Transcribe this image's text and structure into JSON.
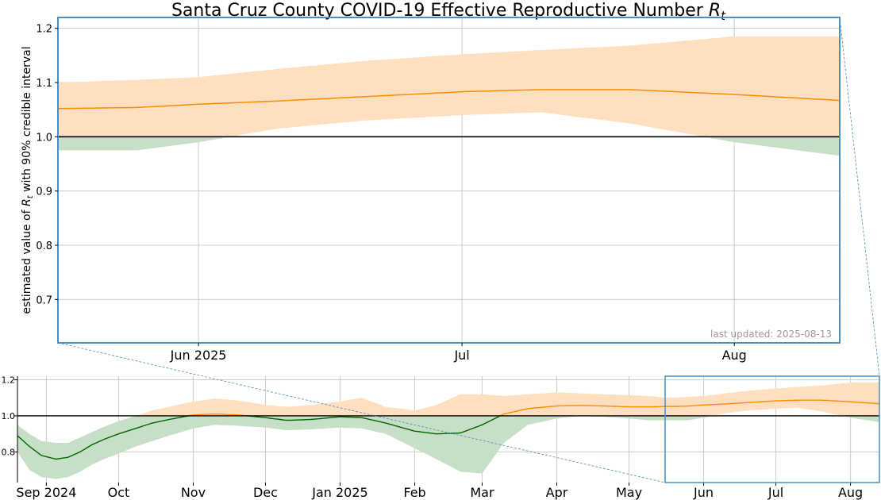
{
  "chart_data": {
    "type": "area",
    "title": "Santa Cruz County COVID-19 Effective Reproductive Number",
    "title_symbol": "R",
    "title_symbol_sub": "t",
    "ylabel_prefix": "estimated value of",
    "ylabel_symbol": "R",
    "ylabel_symbol_sub": "t",
    "ylabel_suffix": "with 90% credible interval",
    "annotation": "last updated: 2025-08-13",
    "reference_line": 1.0,
    "colors": {
      "above_fill": "#ffdfbf",
      "below_fill": "#c8dfc7",
      "above_line": "#ff8c00",
      "below_line": "#006400",
      "reference": "#000000",
      "zoom_box": "#4a8ec2",
      "grid": "#cccccc"
    },
    "main_panel": {
      "x_range": [
        "2025-05-16",
        "2025-08-13"
      ],
      "ylim": [
        0.62,
        1.22
      ],
      "y_ticks": [
        "0.7",
        "0.8",
        "0.9",
        "1.0",
        "1.1",
        "1.2"
      ],
      "x_ticks": [
        {
          "date": "2025-06-01",
          "label": "Jun 2025"
        },
        {
          "date": "2025-07-01",
          "label": "Jul"
        },
        {
          "date": "2025-08-01",
          "label": "Aug"
        }
      ],
      "grid": true
    },
    "overview_panel": {
      "x_range": [
        "2024-08-20",
        "2025-08-13"
      ],
      "ylim": [
        0.63,
        1.22
      ],
      "y_ticks": [
        "0.8",
        "1.0",
        "1.2"
      ],
      "x_ticks": [
        {
          "date": "2024-09-01",
          "label": "Sep 2024"
        },
        {
          "date": "2024-10-01",
          "label": "Oct"
        },
        {
          "date": "2024-11-01",
          "label": "Nov"
        },
        {
          "date": "2024-12-01",
          "label": "Dec"
        },
        {
          "date": "2025-01-01",
          "label": "Jan 2025"
        },
        {
          "date": "2025-02-01",
          "label": "Feb"
        },
        {
          "date": "2025-03-01",
          "label": "Mar"
        },
        {
          "date": "2025-04-01",
          "label": "Apr"
        },
        {
          "date": "2025-05-01",
          "label": "May"
        },
        {
          "date": "2025-06-01",
          "label": "Jun"
        },
        {
          "date": "2025-07-01",
          "label": "Jul"
        },
        {
          "date": "2025-08-01",
          "label": "Aug"
        }
      ],
      "zoom_window": [
        "2025-05-16",
        "2025-08-13"
      ],
      "grid": true
    },
    "series": [
      {
        "x": [
          "2024-08-20",
          "2024-08-25",
          "2024-08-30",
          "2024-09-05",
          "2024-09-10",
          "2024-09-15",
          "2024-09-20",
          "2024-09-25",
          "2024-10-01",
          "2024-10-08",
          "2024-10-15",
          "2024-10-22",
          "2024-11-01",
          "2024-11-10",
          "2024-11-20",
          "2024-12-01",
          "2024-12-10",
          "2024-12-20",
          "2025-01-01",
          "2025-01-10",
          "2025-01-20",
          "2025-02-01",
          "2025-02-10",
          "2025-02-20",
          "2025-03-01",
          "2025-03-10",
          "2025-03-20",
          "2025-04-01",
          "2025-04-10",
          "2025-04-20",
          "2025-05-01",
          "2025-05-10",
          "2025-05-16",
          "2025-05-25",
          "2025-06-01",
          "2025-06-10",
          "2025-06-20",
          "2025-07-01",
          "2025-07-10",
          "2025-07-20",
          "2025-08-01",
          "2025-08-13"
        ],
        "mean": [
          0.89,
          0.83,
          0.78,
          0.76,
          0.77,
          0.8,
          0.84,
          0.87,
          0.9,
          0.93,
          0.96,
          0.98,
          1.005,
          1.01,
          1.005,
          0.99,
          0.975,
          0.98,
          0.995,
          0.99,
          0.96,
          0.915,
          0.9,
          0.905,
          0.95,
          1.01,
          1.04,
          1.055,
          1.058,
          1.055,
          1.05,
          1.05,
          1.052,
          1.054,
          1.06,
          1.066,
          1.074,
          1.083,
          1.087,
          1.087,
          1.078,
          1.067
        ],
        "lower": [
          0.8,
          0.7,
          0.66,
          0.65,
          0.66,
          0.69,
          0.73,
          0.76,
          0.79,
          0.83,
          0.86,
          0.89,
          0.93,
          0.95,
          0.945,
          0.935,
          0.92,
          0.925,
          0.935,
          0.93,
          0.9,
          0.82,
          0.76,
          0.69,
          0.68,
          0.85,
          0.95,
          0.985,
          1.0,
          0.995,
          0.985,
          0.975,
          0.975,
          0.975,
          0.99,
          1.015,
          1.03,
          1.04,
          1.045,
          1.025,
          0.99,
          0.965
        ],
        "upper": [
          0.95,
          0.9,
          0.86,
          0.85,
          0.85,
          0.88,
          0.91,
          0.94,
          0.97,
          1.0,
          1.03,
          1.05,
          1.08,
          1.095,
          1.085,
          1.06,
          1.05,
          1.06,
          1.08,
          1.1,
          1.05,
          1.03,
          1.06,
          1.12,
          1.12,
          1.11,
          1.12,
          1.13,
          1.125,
          1.12,
          1.115,
          1.11,
          1.1,
          1.105,
          1.11,
          1.125,
          1.14,
          1.152,
          1.16,
          1.168,
          1.185,
          1.185
        ]
      }
    ]
  }
}
